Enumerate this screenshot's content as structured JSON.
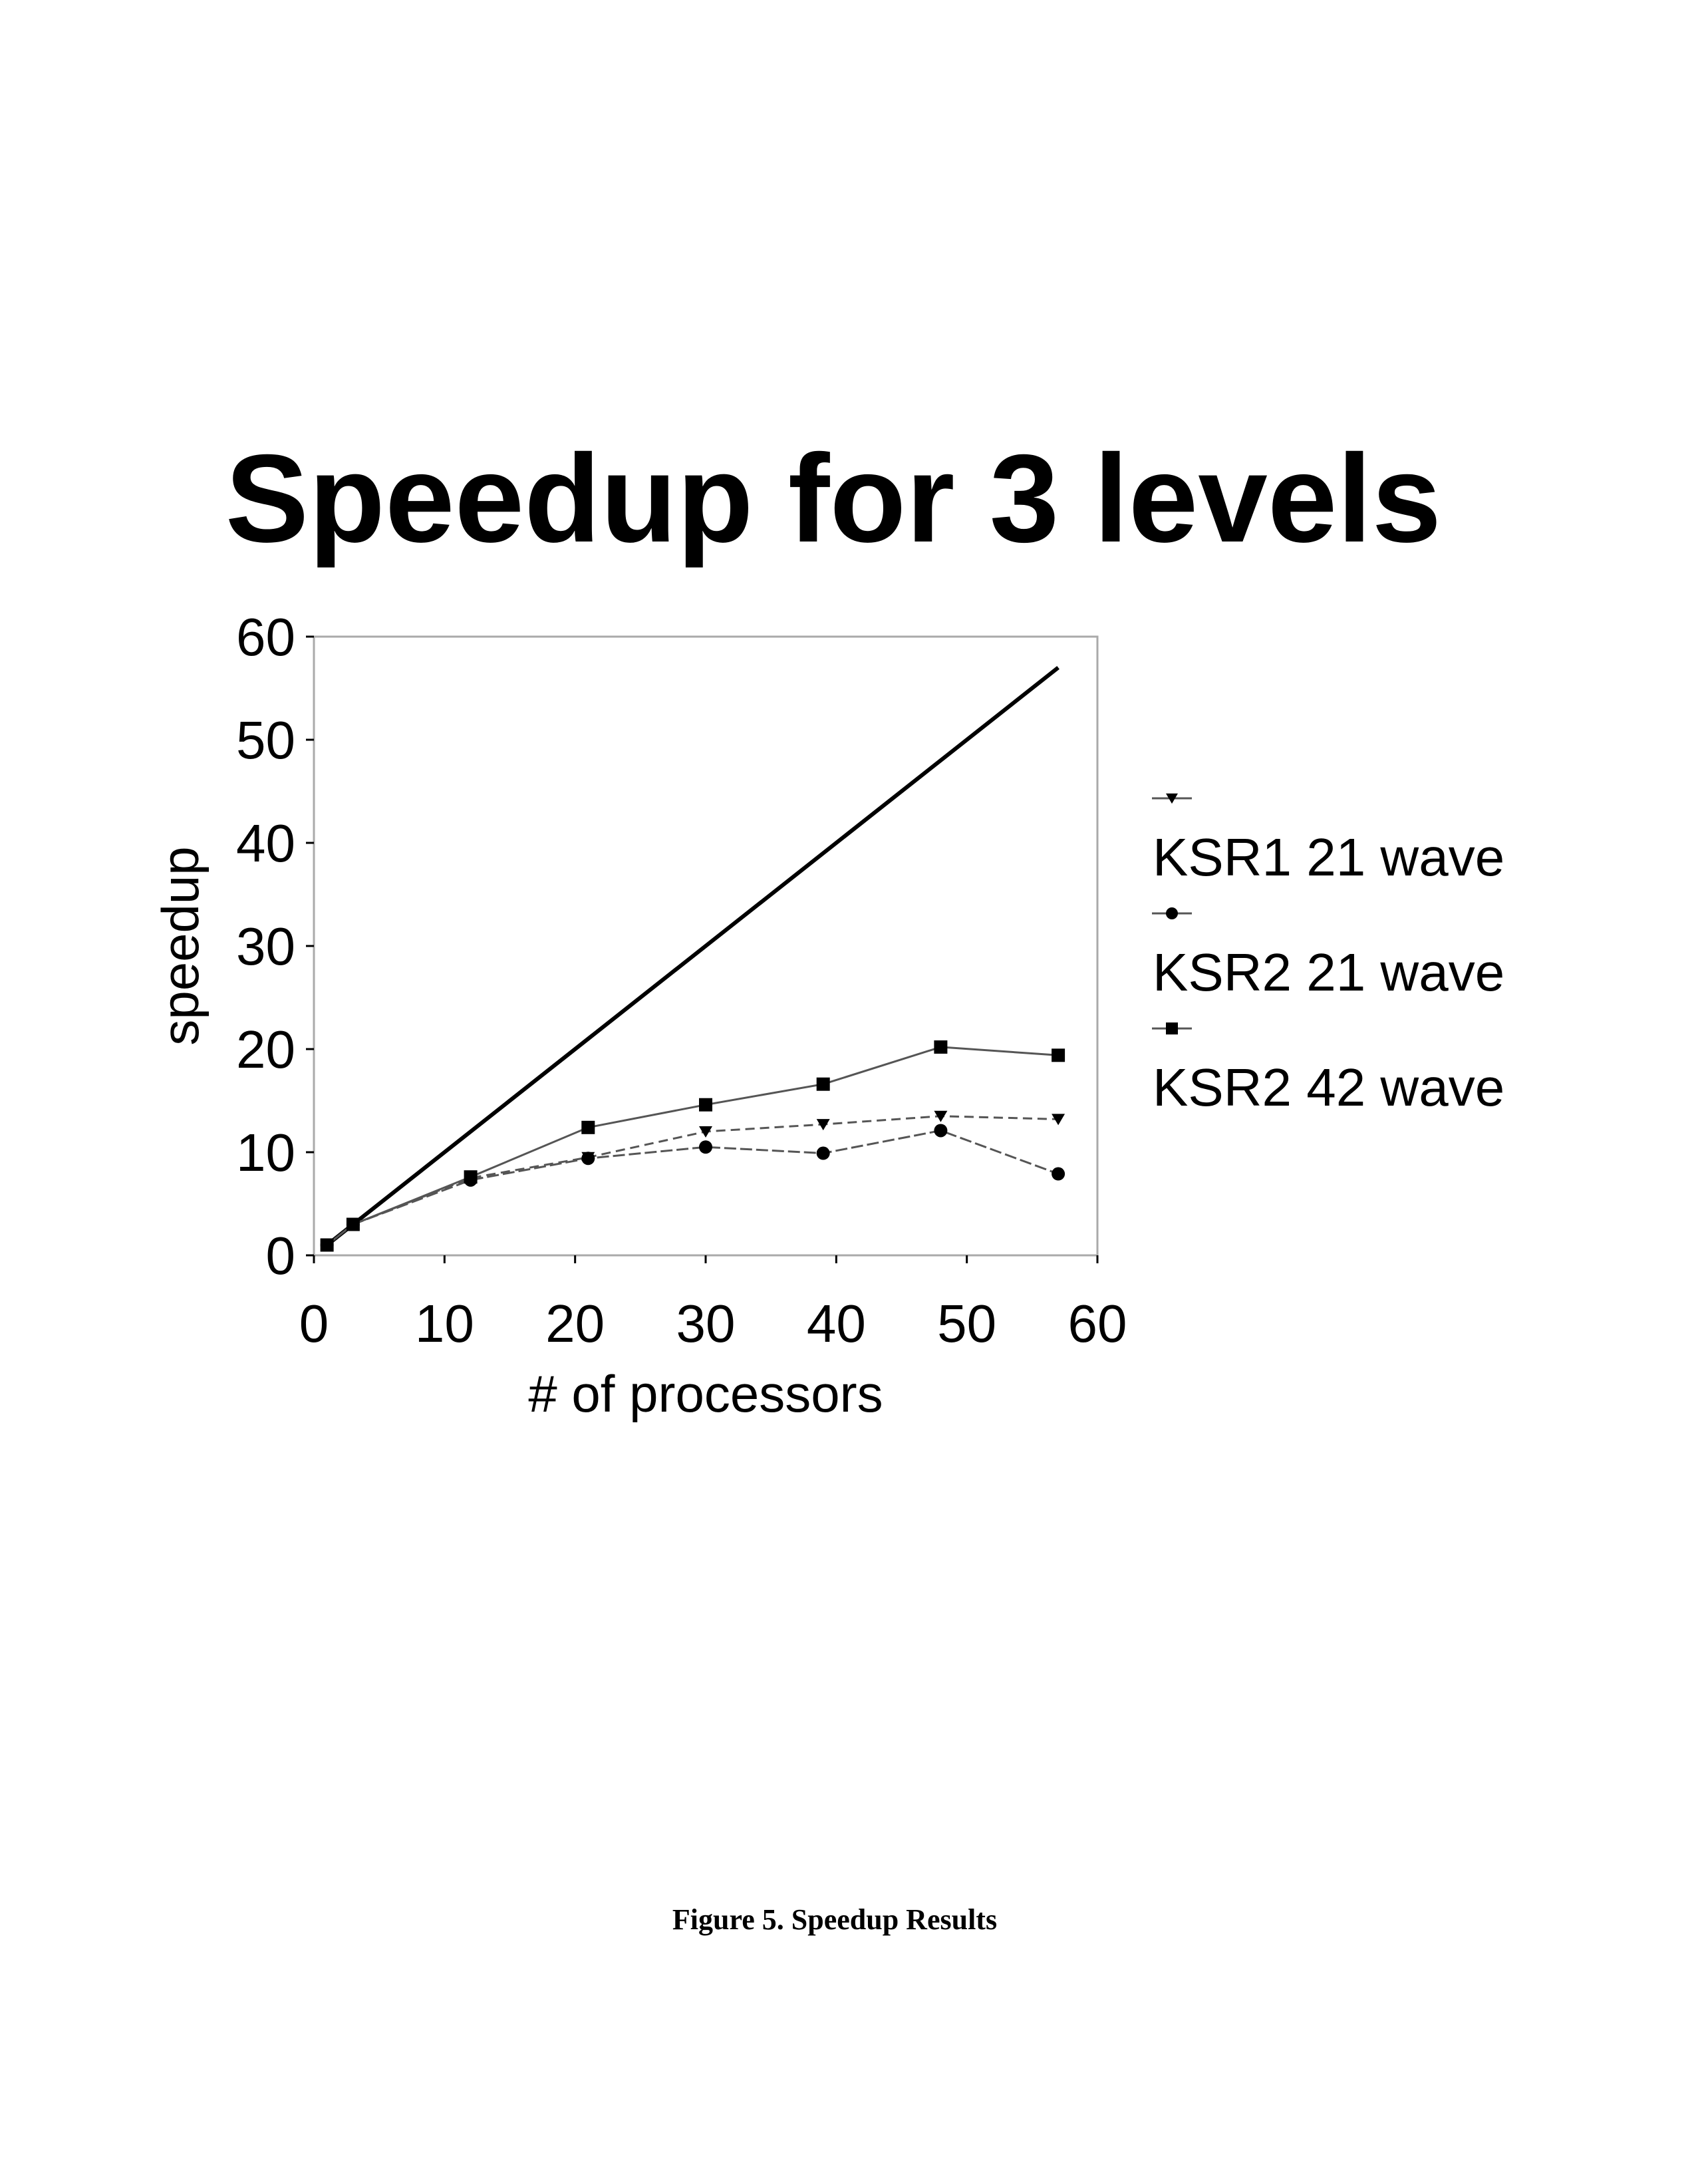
{
  "figure_caption": "Figure 5. Speedup Results",
  "chart_data": {
    "type": "line",
    "title": "Speedup for 3 levels",
    "xlabel": "# of processors",
    "ylabel": "speedup",
    "xlim": [
      0,
      60
    ],
    "ylim": [
      0,
      60
    ],
    "xticks": [
      "0",
      "10",
      "20",
      "30",
      "40",
      "50",
      "60"
    ],
    "yticks": [
      "0",
      "10",
      "20",
      "30",
      "40",
      "50",
      "60"
    ],
    "grid": false,
    "legend_position": "right",
    "ideal_line": {
      "x": [
        1,
        57
      ],
      "y": [
        1,
        57
      ],
      "color": "#000000"
    },
    "series": [
      {
        "name": "KSR1 21 wave",
        "marker": "triangle-down",
        "color": "#000000",
        "x": [
          1,
          3,
          12,
          21,
          30,
          39,
          48,
          57
        ],
        "y": [
          1,
          3,
          7.5,
          9.5,
          12,
          12.7,
          13.5,
          13.2
        ]
      },
      {
        "name": "KSR2 21 wave",
        "marker": "circle",
        "color": "#000000",
        "x": [
          1,
          3,
          12,
          21,
          30,
          39,
          48,
          57
        ],
        "y": [
          1,
          3,
          7.3,
          9.4,
          10.5,
          9.9,
          12.1,
          7.9
        ]
      },
      {
        "name": "KSR2 42 wave",
        "marker": "square",
        "color": "#000000",
        "x": [
          1,
          3,
          12,
          21,
          30,
          39,
          48,
          57
        ],
        "y": [
          1,
          3,
          7.6,
          12.4,
          14.6,
          16.6,
          20.2,
          19.4
        ]
      }
    ]
  }
}
